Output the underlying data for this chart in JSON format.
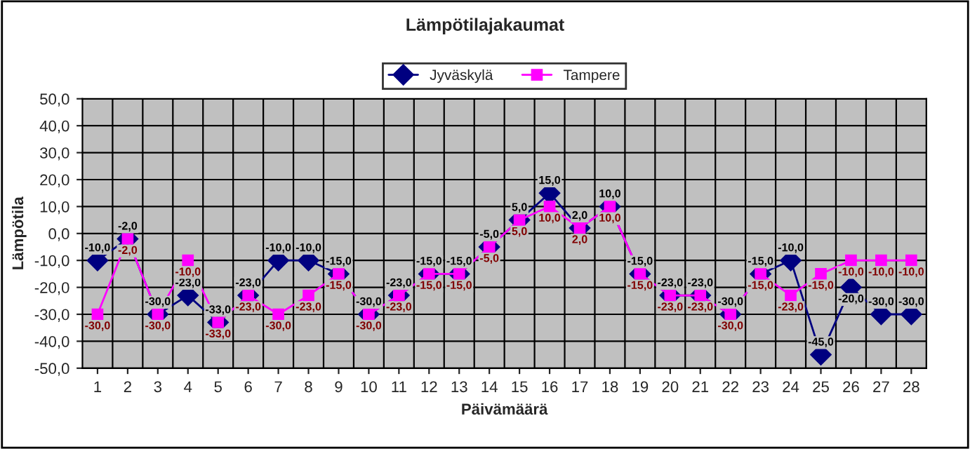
{
  "chart_data": {
    "type": "line",
    "title": "Lämpötilajakaumat",
    "xlabel": "Päivämäärä",
    "ylabel": "Lämpötila",
    "categories": [
      "1",
      "2",
      "3",
      "4",
      "5",
      "6",
      "7",
      "8",
      "9",
      "10",
      "11",
      "12",
      "13",
      "14",
      "15",
      "16",
      "17",
      "18",
      "19",
      "20",
      "21",
      "22",
      "23",
      "24",
      "25",
      "26",
      "27",
      "28"
    ],
    "series": [
      {
        "name": "Jyväskylä",
        "color": "#000080",
        "marker": "diamond",
        "values": [
          -10,
          -2,
          -30,
          -23,
          -33,
          -23,
          -10,
          -10,
          -15,
          -30,
          -23,
          -15,
          -15,
          -5,
          5,
          15,
          2,
          10,
          -15,
          -23,
          -23,
          -30,
          -15,
          -10,
          -45,
          -20,
          -30,
          -30
        ],
        "value_labels": [
          "-10,0",
          "-2,0",
          "-30,0",
          "-23,0",
          "-33,0",
          "-23,0",
          "-10,0",
          "-10,0",
          "-15,0",
          "-30,0",
          "-23,0",
          "-15,0",
          "-15,0",
          "-5,0",
          "5,0",
          "15,0",
          "2,0",
          "10,0",
          "-15,0",
          "-23,0",
          "-23,0",
          "-30,0",
          "-15,0",
          "-10,0",
          "-45,0",
          "-20,0",
          "-30,0",
          "-30,0"
        ]
      },
      {
        "name": "Tampere",
        "color": "#ff00ff",
        "marker": "square",
        "values": [
          -30,
          -2,
          -30,
          -10,
          -33,
          -23,
          -30,
          -23,
          -15,
          -30,
          -23,
          -15,
          -15,
          -5,
          5,
          10,
          2,
          10,
          -15,
          -23,
          -23,
          -30,
          -15,
          -23,
          -15,
          -10,
          -10,
          -10
        ],
        "value_labels": [
          "-30,0",
          "-2,0",
          "-30,0",
          "-10,0",
          "-33,0",
          "-23,0",
          "-30,0",
          "-23,0",
          "-15,0",
          "-30,0",
          "-23,0",
          "-15,0",
          "-15,0",
          "-5,0",
          "5,0",
          "10,0",
          "2,0",
          "10,0",
          "-15,0",
          "-23,0",
          "-23,0",
          "-30,0",
          "-15,0",
          "-23,0",
          "-15,0",
          "-10,0",
          "-10,0",
          "-10,0"
        ]
      }
    ],
    "ylim": [
      -50,
      50
    ],
    "yticks": [
      {
        "value": -50,
        "label": "-50,0"
      },
      {
        "value": -40,
        "label": "-40,0"
      },
      {
        "value": -30,
        "label": "-30,0"
      },
      {
        "value": -20,
        "label": "-20,0"
      },
      {
        "value": -10,
        "label": "-10,0"
      },
      {
        "value": 0,
        "label": "0,0"
      },
      {
        "value": 10,
        "label": "10,0"
      },
      {
        "value": 20,
        "label": "20,0"
      },
      {
        "value": 30,
        "label": "30,0"
      },
      {
        "value": 40,
        "label": "40,0"
      },
      {
        "value": 50,
        "label": "50,0"
      }
    ],
    "grid": true,
    "legend": "top",
    "line_style": "solid"
  }
}
